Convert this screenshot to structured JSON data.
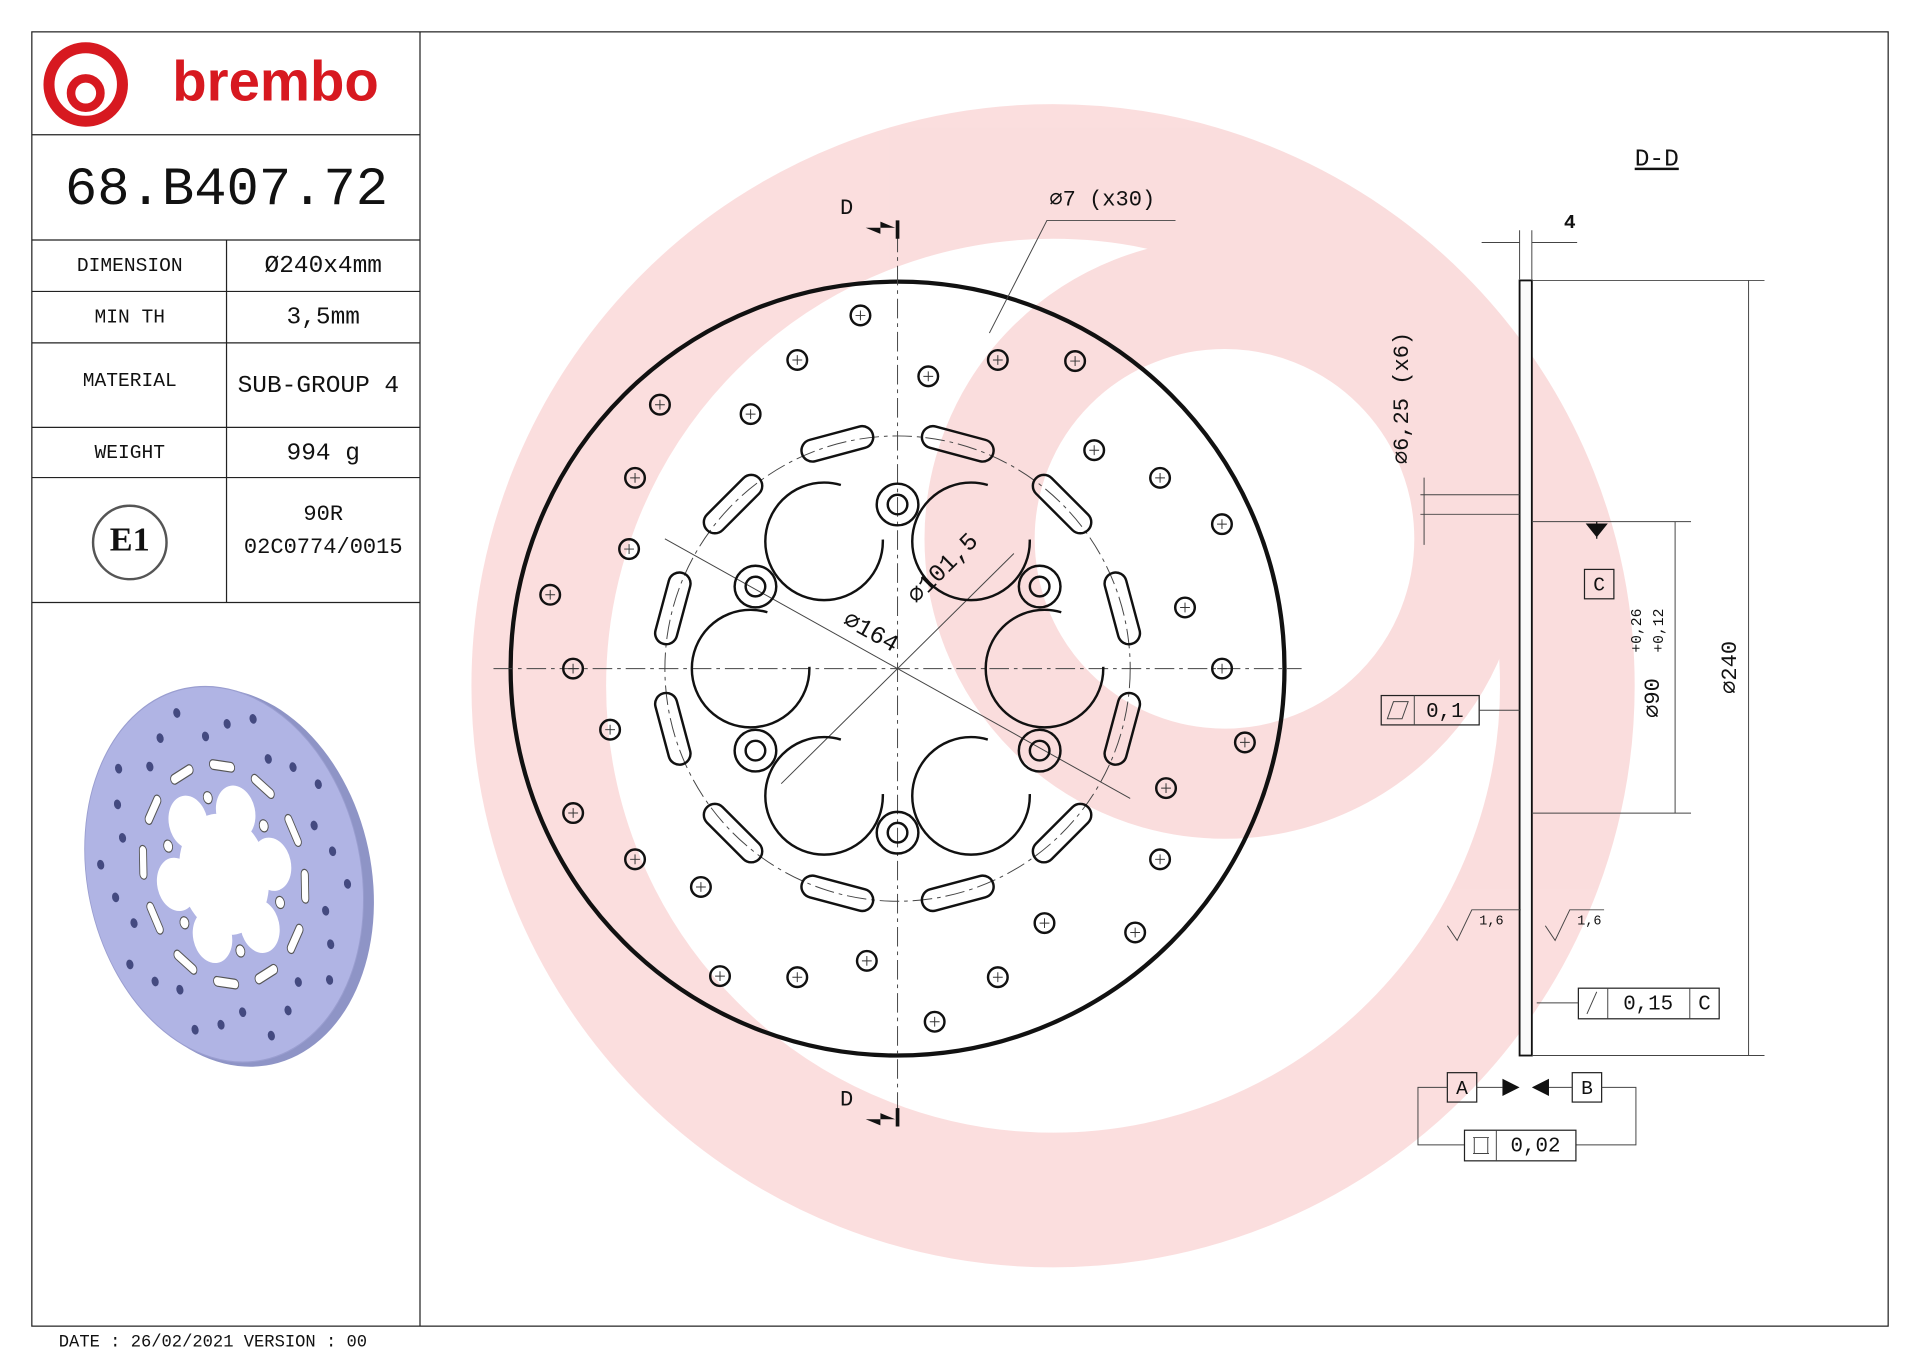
{
  "header": {
    "brand": "brembo",
    "part_number": "68.B407.72"
  },
  "specs": [
    {
      "label": "DIMENSION",
      "value": "Ø240x4mm"
    },
    {
      "label": "MIN TH",
      "value": "3,5mm"
    },
    {
      "label": "MATERIAL",
      "value": "SUB-GROUP 4"
    },
    {
      "label": "WEIGHT",
      "value": "994 g"
    }
  ],
  "approval": {
    "mark": "E1",
    "regulation": "90R",
    "number": "02C0774/0015"
  },
  "footer": "DATE : 26/02/2021 VERSION : 00",
  "drawing": {
    "section_top": "D",
    "section_bottom": "D",
    "holes": "⌀7 (x30)",
    "dia_outer_ring": "⌀164",
    "dia_bolt": "⌀101,5",
    "section_title": "D-D",
    "thickness": "4",
    "bolt_holes": "⌀6,25 (x6)",
    "datum_c": "C",
    "centre_dia": "⌀90",
    "tol_upper": "+0,26",
    "tol_lower": "+0,12",
    "outer_dia": "⌀240",
    "flatness": "0,1",
    "roughness_left": "1,6",
    "roughness_right": "1,6",
    "runout": "0,15",
    "runout_datum": "C",
    "datum_a": "A",
    "datum_b": "B",
    "parallelism": "0,02"
  }
}
